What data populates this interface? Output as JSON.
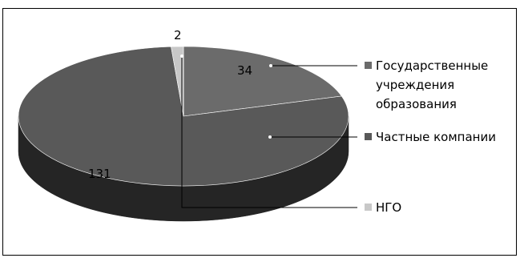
{
  "chart_data": {
    "type": "pie",
    "style": "3d",
    "title": "",
    "legend_position": "right",
    "categories": [
      "Государственные учреждения образования",
      "Частные компании",
      "НГО"
    ],
    "values": [
      34,
      131,
      2
    ],
    "data_labels": [
      "34",
      "131",
      "2"
    ],
    "colors": [
      "#6b6b6b",
      "#595959",
      "#c8c8c8"
    ],
    "legend": [
      {
        "lines": [
          "Государственные",
          "учреждения",
          "образования"
        ],
        "color": "#6b6b6b"
      },
      {
        "lines": [
          "Частные компании"
        ],
        "color": "#595959"
      },
      {
        "lines": [
          "НГО"
        ],
        "color": "#c8c8c8"
      }
    ]
  }
}
